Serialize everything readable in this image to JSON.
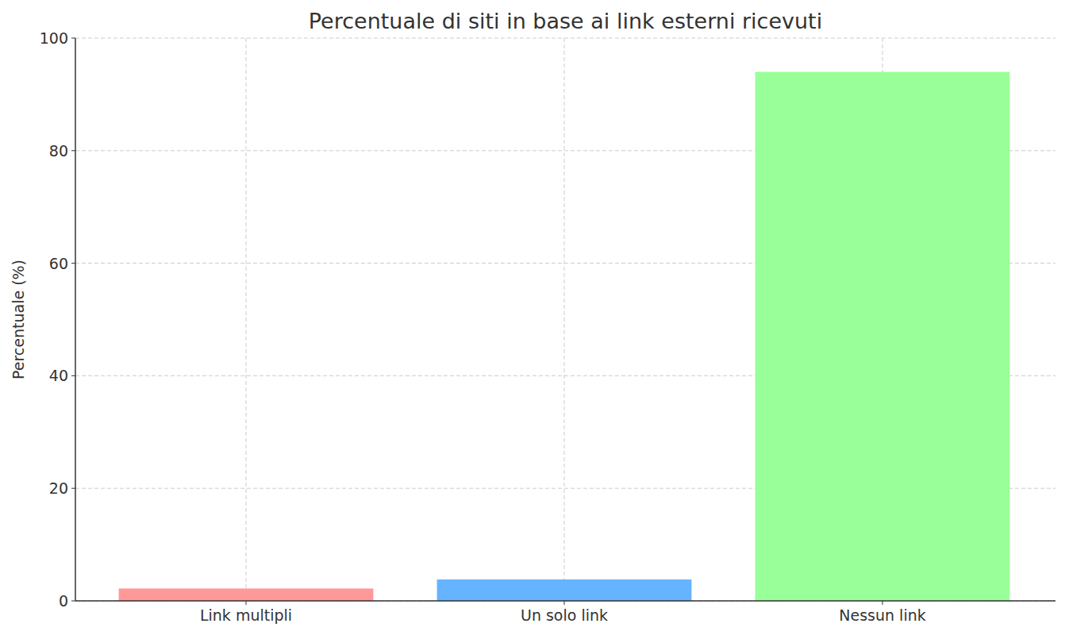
{
  "chart_data": {
    "type": "bar",
    "title": "Percentuale di siti in base ai link esterni ricevuti",
    "y_label": "Percentuale (%)",
    "categories": [
      "Link multipli",
      "Un solo link",
      "Nessun link"
    ],
    "values": [
      2.2,
      3.8,
      94
    ],
    "colors": [
      "#ff9999",
      "#66b3ff",
      "#99ff99"
    ],
    "ylim": [
      0,
      100
    ],
    "yticks": [
      0,
      20,
      40,
      60,
      80,
      100
    ],
    "grid": true
  }
}
